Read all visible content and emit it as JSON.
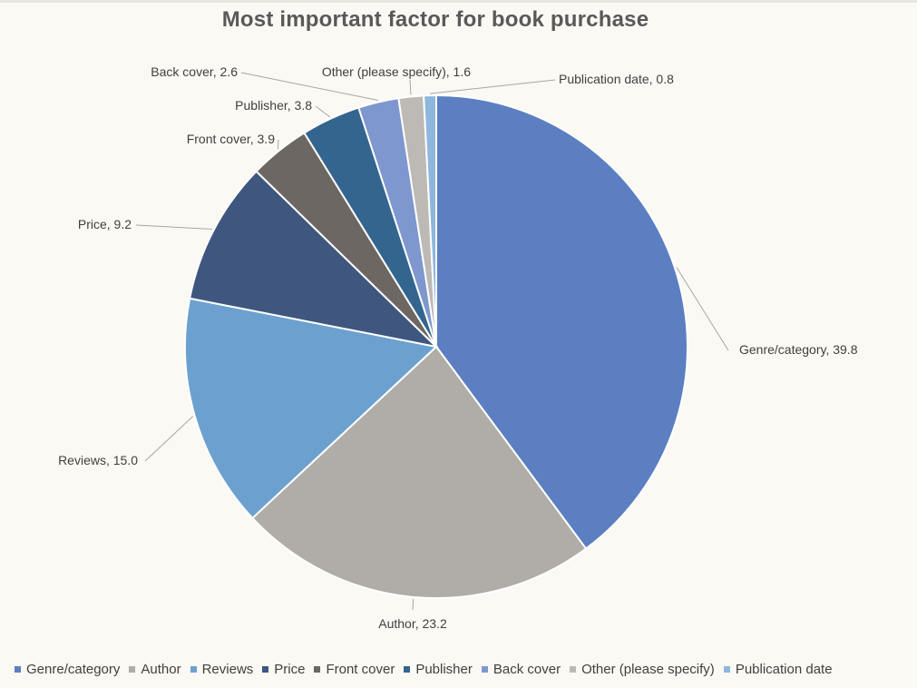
{
  "chart_data": {
    "type": "pie",
    "title": "Most important factor for book purchase",
    "categories": [
      "Genre/category",
      "Author",
      "Reviews",
      "Price",
      "Front cover",
      "Publisher",
      "Back cover",
      "Other (please specify)",
      "Publication date"
    ],
    "values": [
      39.8,
      23.2,
      15.0,
      9.2,
      3.9,
      3.8,
      2.6,
      1.6,
      0.8
    ],
    "data_labels": [
      "Genre/category, 39.8",
      "Author, 23.2",
      "Reviews, 15.0",
      "Price, 9.2",
      "Front cover, 3.9",
      "Publisher, 3.8",
      "Back cover, 2.6",
      "Other (please specify), 1.6",
      "Publication date, 0.8"
    ],
    "colors": [
      "#5b7fc1",
      "#b0aca7",
      "#6ca1cf",
      "#3f567f",
      "#6c6762",
      "#33658f",
      "#7f97cf",
      "#bdb9b4",
      "#8fb7de"
    ],
    "start_angle": "12 o'clock",
    "direction": "clockwise",
    "legend_position": "bottom"
  }
}
